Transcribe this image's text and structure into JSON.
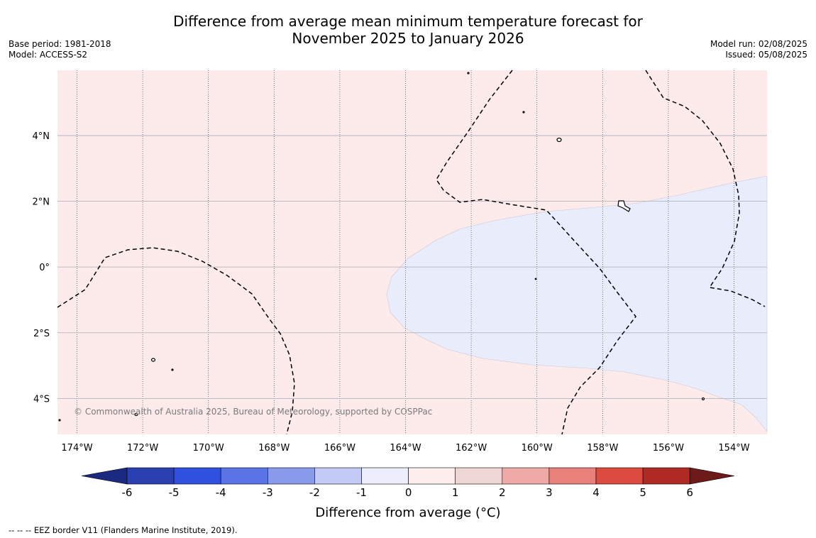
{
  "title_line1": "Difference from average mean minimum temperature forecast for",
  "title_line2": "November 2025 to January 2026",
  "base_period": "Base period: 1981-2018",
  "model": "Model: ACCESS-S2",
  "model_run": "Model run: 02/08/2025",
  "issued": "Issued: 05/08/2025",
  "copyright": "© Commonwealth of Australia 2025, Bureau of Meteorology, supported by COSPPac",
  "eez_legend": "--  --  -- EEZ border V11 (Flanders Marine Institute, 2019).",
  "lon_labels": [
    "174°W",
    "172°W",
    "170°W",
    "168°W",
    "166°W",
    "164°W",
    "162°W",
    "160°W",
    "158°W",
    "156°W",
    "154°W"
  ],
  "lat_labels": [
    "4°N",
    "2°N",
    "0°",
    "2°S",
    "4°S"
  ],
  "colorbar": {
    "label": "Difference from average (°C)",
    "ticks": [
      "-6",
      "-5",
      "-4",
      "-3",
      "-2",
      "-1",
      "0",
      "1",
      "2",
      "3",
      "4",
      "5",
      "6"
    ],
    "colors": [
      "#1a2a80",
      "#2a3fb0",
      "#3050e0",
      "#5a74e6",
      "#8a9aea",
      "#c4caf6",
      "#eceefc",
      "#fdeeed",
      "#eed6d4",
      "#eeaaa6",
      "#e8817a",
      "#dd4a40",
      "#b02a24",
      "#6e1a1a"
    ]
  },
  "field_colors": {
    "warm": "#fcebea",
    "cool": "#e9ecfb"
  }
}
